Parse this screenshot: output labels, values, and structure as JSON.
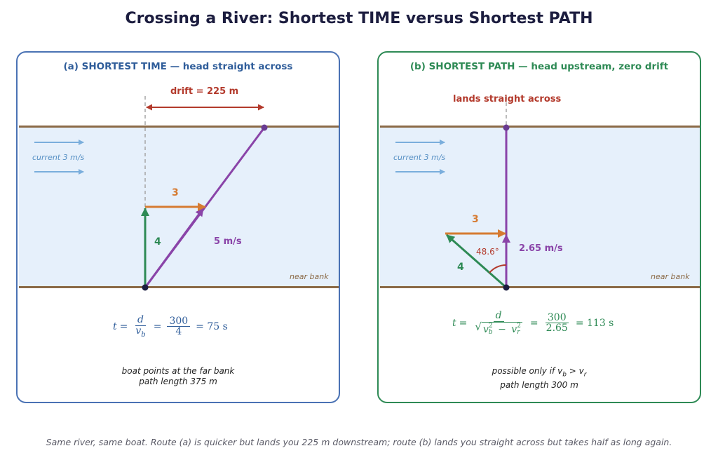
{
  "title": "Crossing a River: Shortest TIME versus Shortest PATH",
  "colors": {
    "time_border": "#4a72b4",
    "path_border": "#2e8a55",
    "river": "#e6f0fb",
    "bank": "#8b6a47",
    "boat_velocity": "#2e8a55",
    "current_velocity": "#d67b32",
    "resultant": "#8a44a8",
    "drift": "#b33a2c"
  },
  "panel_a": {
    "title": "(a)  SHORTEST TIME  —  head straight across",
    "drift_label": "drift = 225 m",
    "current_label": "current 3 m/s",
    "near_bank_label": "near bank",
    "current_vector_label": "3",
    "boat_vector_label": "4",
    "resultant_label": "5 m/s",
    "formula": {
      "t": "t",
      "eq1": "=",
      "num": "d",
      "den_v": "v",
      "den_sub": "b",
      "eq2": "=",
      "num2": "300",
      "den2": "4",
      "rest": "= 75 s"
    },
    "note_line1": "boat points at the far bank",
    "note_line2": "path length 375 m"
  },
  "panel_b": {
    "title": "(b)  SHORTEST PATH  —  head upstream, zero drift",
    "lands_label": "lands straight across",
    "current_label": "current 3 m/s",
    "near_bank_label": "near bank",
    "current_vector_label": "3",
    "boat_vector_label": "4",
    "resultant_label": "2.65 m/s",
    "angle_label": "48.6°",
    "formula": {
      "t": "t",
      "eq1": "=",
      "num": "d",
      "rad_a": "v",
      "rad_a_sup": "2",
      "rad_a_sub": "b",
      "minus": "−",
      "rad_b": "v",
      "rad_b_sup": "2",
      "rad_b_sub": "r",
      "eq2": "=",
      "num2": "300",
      "den2": "2.65",
      "rest": "= 113 s"
    },
    "note_line1_prefix": "possible only if ",
    "note_v1": "v",
    "note_sub1": "b",
    "note_gt": " > ",
    "note_v2": "v",
    "note_sub2": "r",
    "note_line2": "path length 300 m"
  },
  "footer": "Same river, same boat. Route (a) is quicker but lands you 225 m downstream; route (b) lands you straight across but takes half as long again."
}
